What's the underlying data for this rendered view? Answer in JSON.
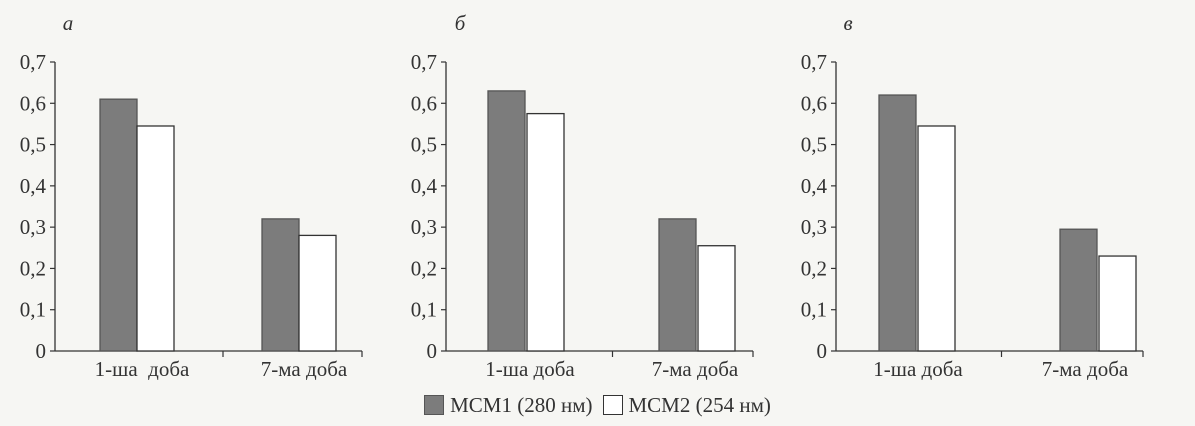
{
  "chart_data": [
    {
      "type": "bar",
      "panel_label": "а",
      "categories": [
        "1-ша  доба",
        "7-ма доба"
      ],
      "series": [
        {
          "name": "МСМ1 (280 нм)",
          "values": [
            0.61,
            0.32
          ]
        },
        {
          "name": "МСМ2 (254 нм)",
          "values": [
            0.545,
            0.28
          ]
        }
      ],
      "ylim": [
        0,
        0.7
      ],
      "yticks": [
        "0",
        "0,1",
        "0,2",
        "0,3",
        "0,4",
        "0,5",
        "0,6",
        "0,7"
      ],
      "grid": false
    },
    {
      "type": "bar",
      "panel_label": "б",
      "categories": [
        "1-ша доба",
        "7-ма доба"
      ],
      "series": [
        {
          "name": "МСМ1 (280 нм)",
          "values": [
            0.63,
            0.32
          ]
        },
        {
          "name": "МСМ2 (254 нм)",
          "values": [
            0.575,
            0.255
          ]
        }
      ],
      "ylim": [
        0,
        0.7
      ],
      "yticks": [
        "0",
        "0,1",
        "0,2",
        "0,3",
        "0,4",
        "0,5",
        "0,6",
        "0,7"
      ],
      "grid": false
    },
    {
      "type": "bar",
      "panel_label": "в",
      "categories": [
        "1-ша доба",
        "7-ма доба"
      ],
      "series": [
        {
          "name": "МСМ1 (280 нм)",
          "values": [
            0.62,
            0.295
          ]
        },
        {
          "name": "МСМ2 (254 нм)",
          "values": [
            0.545,
            0.23
          ]
        }
      ],
      "ylim": [
        0,
        0.7
      ],
      "yticks": [
        "0",
        "0,1",
        "0,2",
        "0,3",
        "0,4",
        "0,5",
        "0,6",
        "0,7"
      ],
      "grid": false
    }
  ],
  "legend": {
    "placement": "bottom-center",
    "items": [
      {
        "label": "МСМ1 (280 нм)",
        "color": "#7c7c7c"
      },
      {
        "label": "МСМ2 (254 нм)",
        "color": "#ffffff"
      }
    ]
  }
}
